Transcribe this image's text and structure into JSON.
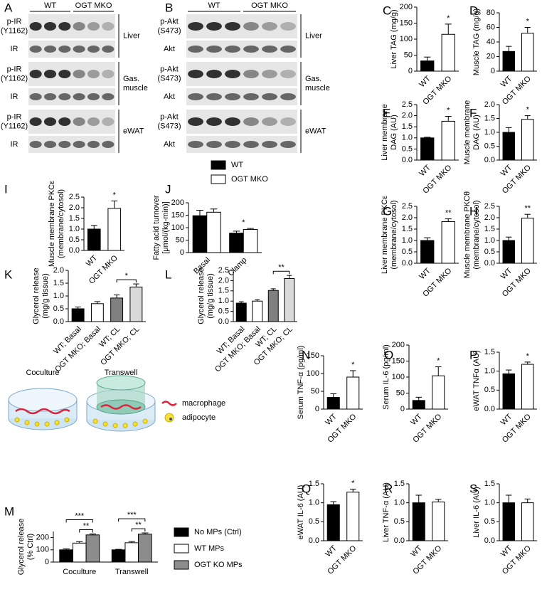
{
  "blots": [
    {
      "label": "A",
      "groups": [
        "WT",
        "OGT MKO"
      ],
      "tissues": [
        {
          "name": [
            "Liver"
          ],
          "bands": [
            [
              "p-IR",
              "(Y1162)"
            ],
            [
              "IR"
            ]
          ]
        },
        {
          "name": [
            "Gas.",
            "muscle"
          ],
          "bands": [
            [
              "p-IR",
              "(Y1162)"
            ],
            [
              "IR"
            ]
          ]
        },
        {
          "name": [
            "eWAT"
          ],
          "bands": [
            [
              "p-IR",
              "(Y1162)"
            ],
            [
              "IR"
            ]
          ]
        }
      ]
    },
    {
      "label": "B",
      "groups": [
        "WT",
        "OGT MKO"
      ],
      "tissues": [
        {
          "name": [
            "Liver"
          ],
          "bands": [
            [
              "p-Akt",
              "(S473)"
            ],
            [
              "Akt"
            ]
          ]
        },
        {
          "name": [
            "Gas.",
            "muscle"
          ],
          "bands": [
            [
              "p-Akt",
              "(S473)"
            ],
            [
              "Akt"
            ]
          ]
        },
        {
          "name": [
            "eWAT"
          ],
          "bands": [
            [
              "p-Akt",
              "(S473)"
            ],
            [
              "Akt"
            ]
          ]
        }
      ]
    }
  ],
  "schematic": {
    "panels": [
      "Coculture",
      "Transwell"
    ],
    "legend": [
      "macrophage",
      "adipocyte"
    ]
  },
  "chart_data": [
    {
      "label": "C",
      "type": "bar",
      "ylabel": [
        "Liver TAG (mg/g)"
      ],
      "categories": [
        "WT",
        "OGT MKO"
      ],
      "values": [
        32,
        115
      ],
      "errors": [
        12,
        32
      ],
      "colors": [
        "#000000",
        "#ffffff"
      ],
      "significance": [
        null,
        "*"
      ],
      "ylim": [
        0,
        200
      ],
      "yticks": [
        0,
        50,
        100,
        150,
        200
      ]
    },
    {
      "label": "D",
      "type": "bar",
      "ylabel": [
        "Muscle TAG (mg/g)"
      ],
      "categories": [
        "WT",
        "OGT MKO"
      ],
      "values": [
        27,
        52
      ],
      "errors": [
        7,
        8
      ],
      "colors": [
        "#000000",
        "#ffffff"
      ],
      "significance": [
        null,
        "*"
      ],
      "ylim": [
        0,
        80
      ],
      "yticks": [
        0,
        20,
        40,
        60,
        80
      ]
    },
    {
      "label": "E",
      "type": "bar",
      "ylabel": [
        "Liver membrane",
        "DAG (AU)"
      ],
      "categories": [
        "WT",
        "OGT MKO"
      ],
      "values": [
        1.0,
        1.75
      ],
      "errors": [
        0.03,
        0.22
      ],
      "colors": [
        "#000000",
        "#ffffff"
      ],
      "significance": [
        null,
        "*"
      ],
      "ylim": [
        0,
        2.5
      ],
      "yticks": [
        {
          "value": 0,
          "label": "0.0"
        },
        0.5,
        {
          "value": 1,
          "label": "1.0"
        },
        1.5,
        {
          "value": 2,
          "label": "2.0"
        },
        2.5
      ]
    },
    {
      "label": "F",
      "type": "bar",
      "ylabel": [
        "Muscle membrane",
        "DAG (AU)"
      ],
      "categories": [
        "WT",
        "OGT MKO"
      ],
      "values": [
        1.0,
        1.47
      ],
      "errors": [
        0.17,
        0.13
      ],
      "colors": [
        "#000000",
        "#ffffff"
      ],
      "significance": [
        null,
        "*"
      ],
      "ylim": [
        0,
        2
      ],
      "yticks": [
        {
          "value": 0,
          "label": "0.0"
        },
        0.5,
        {
          "value": 1,
          "label": "1.0"
        },
        1.5,
        {
          "value": 2,
          "label": "2.0"
        }
      ]
    },
    {
      "label": "G",
      "type": "bar",
      "ylabel": [
        "Liver membrane PKCε",
        "(membrane/cytosol)"
      ],
      "categories": [
        "WT",
        "OGT MKO"
      ],
      "values": [
        1.0,
        1.83
      ],
      "errors": [
        0.12,
        0.12
      ],
      "colors": [
        "#000000",
        "#ffffff"
      ],
      "significance": [
        null,
        "**"
      ],
      "ylim": [
        0,
        2.5
      ],
      "yticks": [
        {
          "value": 0,
          "label": "0.0"
        },
        0.5,
        {
          "value": 1,
          "label": "1.0"
        },
        1.5,
        {
          "value": 2,
          "label": "2.0"
        },
        2.5
      ]
    },
    {
      "label": "H",
      "type": "bar",
      "ylabel": [
        "Muscle membrane PKCθ",
        "(membrane/cytosol)"
      ],
      "categories": [
        "WT",
        "OGT MKO"
      ],
      "values": [
        1.0,
        1.98
      ],
      "errors": [
        0.15,
        0.17
      ],
      "colors": [
        "#000000",
        "#ffffff"
      ],
      "significance": [
        null,
        "**"
      ],
      "ylim": [
        0,
        2.5
      ],
      "yticks": [
        {
          "value": 0,
          "label": "0.0"
        },
        0.5,
        {
          "value": 1,
          "label": "1.0"
        },
        1.5,
        {
          "value": 2,
          "label": "2.0"
        },
        2.5
      ]
    },
    {
      "label": "I",
      "type": "bar",
      "ylabel": [
        "Muscle membrane PKCε",
        "(membrane/cytosol)"
      ],
      "categories": [
        "WT",
        "OGT MKO"
      ],
      "values": [
        1.0,
        1.97
      ],
      "errors": [
        0.17,
        0.35
      ],
      "colors": [
        "#000000",
        "#ffffff"
      ],
      "significance": [
        null,
        "*"
      ],
      "ylim": [
        0,
        2.5
      ],
      "yticks": [
        {
          "value": 0,
          "label": "0.0"
        },
        0.5,
        {
          "value": 1,
          "label": "1.0"
        },
        1.5,
        {
          "value": 2,
          "label": "2.0"
        },
        2.5
      ]
    },
    {
      "label": "J",
      "type": "bar",
      "ylabel": [
        "Fatty acid turnover",
        "[μmol/(kg-min)]"
      ],
      "categories": [
        "Basal",
        "Clamp"
      ],
      "series": [
        {
          "name": "WT",
          "color": "#000000",
          "values": [
            148,
            78
          ],
          "errors": [
            22,
            8
          ]
        },
        {
          "name": "OGT MKO",
          "color": "#ffffff",
          "values": [
            162,
            93
          ],
          "errors": [
            13,
            4
          ]
        }
      ],
      "significance": [
        null,
        "*"
      ],
      "ylim": [
        0,
        200
      ],
      "yticks": [
        0,
        50,
        100,
        150,
        200
      ]
    },
    {
      "label": "K",
      "type": "bar",
      "ylabel": [
        "Glycerol release",
        "(mg/g tissue)"
      ],
      "categories": [
        "WT; Basal",
        "OGT MKO; Basal",
        "WT; CL",
        "OGT MKO; CL"
      ],
      "values": [
        0.5,
        0.7,
        0.92,
        1.35
      ],
      "errors": [
        0.07,
        0.08,
        0.12,
        0.12
      ],
      "colors": [
        "#000000",
        "#ffffff",
        "#808080",
        "#d9d9d9"
      ],
      "comparisons": [
        {
          "label": "*",
          "between": [
            "WT; CL",
            "OGT MKO; CL"
          ]
        }
      ],
      "ylim": [
        0,
        2
      ],
      "yticks": [
        {
          "value": 0,
          "label": "0.0"
        },
        0.5,
        {
          "value": 1,
          "label": "1.0"
        },
        1.5,
        {
          "value": 2,
          "label": "2.0"
        }
      ]
    },
    {
      "label": "L",
      "type": "bar",
      "ylabel": [
        "Glycerol release",
        "(mg/g tissue)"
      ],
      "categories": [
        "WT; Basal",
        "OGT MKO; Basal",
        "WT; CL",
        "OGT MKO; CL"
      ],
      "values": [
        0.9,
        1.0,
        1.52,
        2.1
      ],
      "errors": [
        0.07,
        0.07,
        0.08,
        0.15
      ],
      "colors": [
        "#000000",
        "#ffffff",
        "#808080",
        "#d9d9d9"
      ],
      "comparisons": [
        {
          "label": "**",
          "between": [
            "WT; CL",
            "OGT MKO; CL"
          ]
        }
      ],
      "ylim": [
        0,
        2.5
      ],
      "yticks": [
        {
          "value": 0,
          "label": "0.0"
        },
        0.5,
        {
          "value": 1,
          "label": "1.0"
        },
        1.5,
        {
          "value": 2,
          "label": "2.0"
        },
        2.5
      ]
    },
    {
      "label": "M",
      "type": "bar",
      "ylabel": [
        "Glycerol release",
        "(% Ctrl)"
      ],
      "categories": [
        "Coculture",
        "Transwell"
      ],
      "series": [
        {
          "name": "No MPs (Ctrl)",
          "color": "#000000",
          "values": [
            100,
            100
          ],
          "errors": [
            8,
            4
          ]
        },
        {
          "name": "WT MPs",
          "color": "#ffffff",
          "values": [
            155,
            158
          ],
          "errors": [
            12,
            10
          ]
        },
        {
          "name": "OGT KO MPs",
          "color": "#8c8c8c",
          "values": [
            222,
            228
          ],
          "errors": [
            8,
            10
          ]
        }
      ],
      "comparisons": [
        {
          "group": "Coculture",
          "label": "**",
          "between": [
            "WT MPs",
            "OGT KO MPs"
          ]
        },
        {
          "group": "Coculture",
          "label": "***",
          "between": [
            "No MPs (Ctrl)",
            "OGT KO MPs"
          ]
        },
        {
          "group": "Transwell",
          "label": "**",
          "between": [
            "WT MPs",
            "OGT KO MPs"
          ]
        },
        {
          "group": "Transwell",
          "label": "***",
          "between": [
            "No MPs (Ctrl)",
            "OGT KO MPs"
          ]
        }
      ],
      "ylim": [
        0,
        250
      ],
      "yticks": [
        0,
        100,
        200
      ]
    },
    {
      "label": "N",
      "type": "bar",
      "ylabel": [
        "Serum TNF-α (pg/ml)"
      ],
      "categories": [
        "WT",
        "OGT MKO"
      ],
      "values": [
        33,
        90
      ],
      "errors": [
        10,
        18
      ],
      "colors": [
        "#000000",
        "#ffffff"
      ],
      "significance": [
        null,
        "*"
      ],
      "ylim": [
        0,
        150
      ],
      "yticks": [
        0,
        50,
        100,
        150
      ]
    },
    {
      "label": "O",
      "type": "bar",
      "ylabel": [
        "Serum IL-6 (pg/ml)"
      ],
      "categories": [
        "WT",
        "OGT MKO"
      ],
      "values": [
        27,
        104
      ],
      "errors": [
        10,
        28
      ],
      "colors": [
        "#000000",
        "#ffffff"
      ],
      "significance": [
        null,
        "*"
      ],
      "ylim": [
        0,
        200
      ],
      "yticks": [
        0,
        50,
        100,
        150,
        200
      ]
    },
    {
      "label": "P",
      "type": "bar",
      "ylabel": [
        "eWAT TNFα (AU)"
      ],
      "categories": [
        "WT",
        "OGT MKO"
      ],
      "values": [
        0.93,
        1.18
      ],
      "errors": [
        0.1,
        0.06
      ],
      "colors": [
        "#000000",
        "#ffffff"
      ],
      "significance": [
        null,
        "*"
      ],
      "ylim": [
        0,
        1.5
      ],
      "yticks": [
        {
          "value": 0,
          "label": "0.0"
        },
        0.5,
        {
          "value": 1,
          "label": "1.0"
        },
        1.5
      ]
    },
    {
      "label": "Q",
      "type": "bar",
      "ylabel": [
        "eWAT IL-6 (AU)"
      ],
      "categories": [
        "WT",
        "OGT MKO"
      ],
      "values": [
        0.95,
        1.28
      ],
      "errors": [
        0.08,
        0.08
      ],
      "colors": [
        "#000000",
        "#ffffff"
      ],
      "significance": [
        null,
        "*"
      ],
      "ylim": [
        0,
        1.5
      ],
      "yticks": [
        {
          "value": 0,
          "label": "0.0"
        },
        0.5,
        {
          "value": 1,
          "label": "1.0"
        },
        1.5
      ]
    },
    {
      "label": "R",
      "type": "bar",
      "ylabel": [
        "Liver TNF-α (AU)"
      ],
      "categories": [
        "WT",
        "OGT MKO"
      ],
      "values": [
        1.0,
        1.02
      ],
      "errors": [
        0.2,
        0.07
      ],
      "colors": [
        "#000000",
        "#ffffff"
      ],
      "ylim": [
        0,
        1.5
      ],
      "yticks": [
        {
          "value": 0,
          "label": "0.0"
        },
        0.5,
        {
          "value": 1,
          "label": "1.0"
        },
        1.5
      ]
    },
    {
      "label": "S",
      "type": "bar",
      "ylabel": [
        "Liver IL-6 (AU)"
      ],
      "categories": [
        "WT",
        "OGT MKO"
      ],
      "values": [
        1.0,
        1.0
      ],
      "errors": [
        0.2,
        0.1
      ],
      "colors": [
        "#000000",
        "#ffffff"
      ],
      "ylim": [
        0,
        1.5
      ],
      "yticks": [
        {
          "value": 0,
          "label": "0.0"
        },
        0.5,
        {
          "value": 1,
          "label": "1.0"
        },
        1.5
      ]
    }
  ]
}
